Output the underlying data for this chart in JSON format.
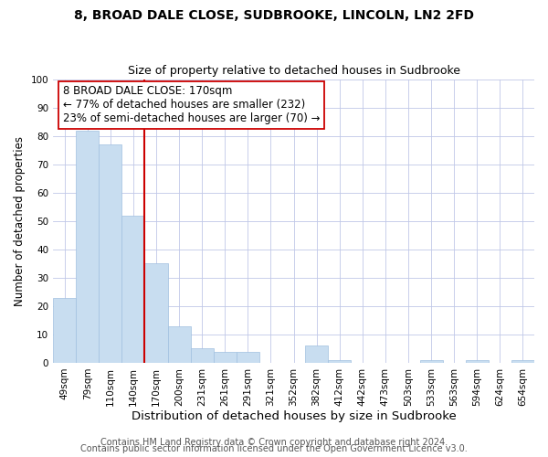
{
  "title": "8, BROAD DALE CLOSE, SUDBROOKE, LINCOLN, LN2 2FD",
  "subtitle": "Size of property relative to detached houses in Sudbrooke",
  "xlabel": "Distribution of detached houses by size in Sudbrooke",
  "ylabel": "Number of detached properties",
  "categories": [
    "49sqm",
    "79sqm",
    "110sqm",
    "140sqm",
    "170sqm",
    "200sqm",
    "231sqm",
    "261sqm",
    "291sqm",
    "321sqm",
    "352sqm",
    "382sqm",
    "412sqm",
    "442sqm",
    "473sqm",
    "503sqm",
    "533sqm",
    "563sqm",
    "594sqm",
    "624sqm",
    "654sqm"
  ],
  "values": [
    23,
    82,
    77,
    52,
    35,
    13,
    5,
    4,
    4,
    0,
    0,
    6,
    1,
    0,
    0,
    0,
    1,
    0,
    1,
    0,
    1
  ],
  "bar_color": "#c8ddf0",
  "bar_edge_color": "#a0c0e0",
  "vline_index": 3.5,
  "vline_color": "#cc0000",
  "annotation_line1": "8 BROAD DALE CLOSE: 170sqm",
  "annotation_line2": "← 77% of detached houses are smaller (232)",
  "annotation_line3": "23% of semi-detached houses are larger (70) →",
  "annotation_box_color": "#ffffff",
  "annotation_box_edgecolor": "#cc0000",
  "annotation_fontsize": 8.5,
  "ylim": [
    0,
    100
  ],
  "yticks": [
    0,
    10,
    20,
    30,
    40,
    50,
    60,
    70,
    80,
    90,
    100
  ],
  "footer1": "Contains HM Land Registry data © Crown copyright and database right 2024.",
  "footer2": "Contains public sector information licensed under the Open Government Licence v3.0.",
  "title_fontsize": 10,
  "subtitle_fontsize": 9,
  "xlabel_fontsize": 9.5,
  "ylabel_fontsize": 8.5,
  "tick_fontsize": 7.5,
  "footer_fontsize": 7,
  "background_color": "#ffffff",
  "grid_color": "#c0c8e8"
}
